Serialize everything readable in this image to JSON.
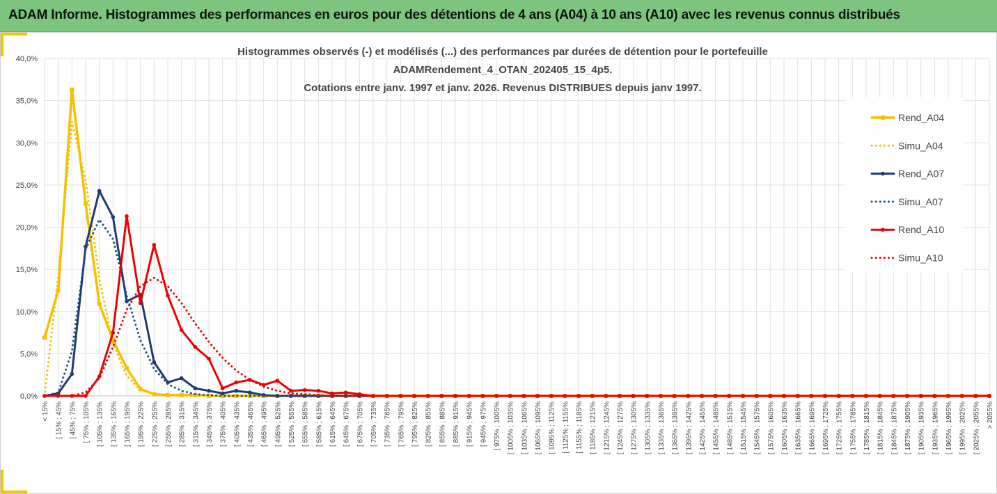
{
  "banner": {
    "title": "ADAM Informe. Histogrammes des performances en euros pour des détentions de 4 ans (A04) à 10 ans (A10) avec les revenus connus distribués"
  },
  "colors": {
    "banner_bg": "#7dc57e",
    "accent": "#f5c400",
    "A04": "#f5c000",
    "A07": "#1f3a6e",
    "A10": "#ee0000"
  },
  "chart_data": {
    "type": "line",
    "title": [
      "Histogrammes observés (-) et modélisés (...) des performances par durées de détention pour le portefeuille",
      "ADAMRendement_4_OTAN_202405_15_4p5.",
      "Cotations entre janv. 1997 et janv. 2026. Revenus DISTRIBUES depuis janv 1997."
    ],
    "ylim": [
      0,
      40
    ],
    "yticks": [
      "0,0%",
      "5,0%",
      "10,0%",
      "15,0%",
      "20,0%",
      "25,0%",
      "30,0%",
      "35,0%",
      "40,0%"
    ],
    "grid": "vertical and horizontal",
    "legend_position": "right",
    "categories": [
      "< 15%",
      "[ 15% ; 45%",
      "[ 45% ; 75%",
      "[ 75% ; 105%",
      "[ 105% ; 135%",
      "[ 135% ; 165%",
      "[ 165% ; 195%",
      "[ 195% ; 225%",
      "[ 225% ; 255%",
      "[ 255% ; 285%",
      "[ 285% ; 315%",
      "[ 315% ; 345%",
      "[ 345% ; 375%",
      "[ 375% ; 405%",
      "[ 405% ; 435%",
      "[ 435% ; 465%",
      "[ 465% ; 495%",
      "[ 495% ; 525%",
      "[ 525% ; 555%",
      "[ 555% ; 585%",
      "[ 585% ; 615%",
      "[ 615% ; 645%",
      "[ 645% ; 675%",
      "[ 675% ; 705%",
      "[ 705% ; 735%",
      "[ 735% ; 765%",
      "[ 765% ; 795%",
      "[ 795% ; 825%",
      "[ 825% ; 855%",
      "[ 855% ; 885%",
      "[ 885% ; 915%",
      "[ 915% ; 945%",
      "[ 945% ; 975%",
      "[ 975% ; 1005%",
      "[ 1005% ; 1035%",
      "[ 1035% ; 1065%",
      "[ 1065% ; 1095%",
      "[ 1095% ; 1125%",
      "[ 1125% ; 1155%",
      "[ 1155% ; 1185%",
      "[ 1185% ; 1215%",
      "[ 1215% ; 1245%",
      "[ 1245% ; 1275%",
      "[ 1275% ; 1305%",
      "[ 1305% ; 1335%",
      "[ 1335% ; 1365%",
      "[ 1365% ; 1395%",
      "[ 1395% ; 1425%",
      "[ 1425% ; 1455%",
      "[ 1455% ; 1485%",
      "[ 1485% ; 1515%",
      "[ 1515% ; 1545%",
      "[ 1545% ; 1575%",
      "[ 1575% ; 1605%",
      "[ 1605% ; 1635%",
      "[ 1635% ; 1665%",
      "[ 1665% ; 1695%",
      "[ 1695% ; 1725%",
      "[ 1725% ; 1755%",
      "[ 1755% ; 1785%",
      "[ 1785% ; 1815%",
      "[ 1815% ; 1845%",
      "[ 1845% ; 1875%",
      "[ 1875% ; 1905%",
      "[ 1905% ; 1935%",
      "[ 1935% ; 1965%",
      "[ 1965% ; 1995%",
      "[ 1995% ; 2025%",
      "[ 2025% ; 2055%",
      "> 2055%"
    ],
    "series": [
      {
        "name": "Rend_A04",
        "style": "solid",
        "marker": "square",
        "color": "#f5c000",
        "values": [
          6.9,
          12.5,
          36.3,
          22.8,
          10.9,
          6.6,
          3.3,
          0.8,
          0.2,
          0.1,
          0.1,
          0.1,
          0.0,
          0.0,
          0.0,
          0.0,
          0.0,
          0.0,
          0.0,
          0.0,
          0.0,
          0.0,
          0.0,
          0.0,
          0.0,
          0.0,
          0.0,
          0.0,
          0.0,
          0.0,
          0.0,
          0.0,
          0.0,
          0.0,
          0.0,
          0.0,
          0.0,
          0.0,
          0.0,
          0.0,
          0.0,
          0.0,
          0.0,
          0.0,
          0.0,
          0.0,
          0.0,
          0.0,
          0.0,
          0.0,
          0.0,
          0.0,
          0.0,
          0.0,
          0.0,
          0.0,
          0.0,
          0.0,
          0.0,
          0.0,
          0.0,
          0.0,
          0.0,
          0.0,
          0.0,
          0.0,
          0.0,
          0.0,
          0.0,
          0.0
        ]
      },
      {
        "name": "Simu_A04",
        "style": "dotted",
        "marker": "none",
        "color": "#f5c000",
        "values": [
          0.0,
          14.3,
          32.5,
          25.6,
          13.9,
          6.2,
          2.4,
          0.7,
          0.2,
          0.1,
          0.0,
          0.0,
          0.0,
          0.0,
          0.0,
          0.0,
          0.0,
          0.0,
          0.0,
          0.0,
          0.0,
          0.0,
          0.0,
          0.0,
          0.0,
          0.0,
          0.0,
          0.0,
          0.0,
          0.0,
          0.0,
          0.0,
          0.0,
          0.0,
          0.0,
          0.0,
          0.0,
          0.0,
          0.0,
          0.0,
          0.0,
          0.0,
          0.0,
          0.0,
          0.0,
          0.0,
          0.0,
          0.0,
          0.0,
          0.0,
          0.0,
          0.0,
          0.0,
          0.0,
          0.0,
          0.0,
          0.0,
          0.0,
          0.0,
          0.0,
          0.0,
          0.0,
          0.0,
          0.0,
          0.0,
          0.0,
          0.0,
          0.0,
          0.0,
          0.0
        ]
      },
      {
        "name": "Rend_A07",
        "style": "solid",
        "marker": "circle",
        "color": "#1f3a6e",
        "values": [
          0.0,
          0.3,
          2.6,
          17.7,
          24.3,
          21.2,
          11.2,
          12.0,
          4.0,
          1.6,
          2.1,
          0.9,
          0.6,
          0.3,
          0.6,
          0.4,
          0.1,
          0.0,
          0.0,
          0.0,
          0.0,
          0.0,
          0.0,
          0.0,
          0.0,
          0.0,
          0.0,
          0.0,
          0.0,
          0.0,
          0.0,
          0.0,
          0.0,
          0.0,
          0.0,
          0.0,
          0.0,
          0.0,
          0.0,
          0.0,
          0.0,
          0.0,
          0.0,
          0.0,
          0.0,
          0.0,
          0.0,
          0.0,
          0.0,
          0.0,
          0.0,
          0.0,
          0.0,
          0.0,
          0.0,
          0.0,
          0.0,
          0.0,
          0.0,
          0.0,
          0.0,
          0.0,
          0.0,
          0.0,
          0.0,
          0.0,
          0.0,
          0.0,
          0.0,
          0.0
        ]
      },
      {
        "name": "Simu_A07",
        "style": "dotted",
        "marker": "none",
        "color": "#1f4f86",
        "values": [
          0.0,
          0.4,
          5.3,
          17.4,
          20.9,
          18.6,
          11.9,
          6.6,
          3.2,
          1.4,
          0.6,
          0.2,
          0.1,
          0.0,
          0.0,
          0.0,
          0.0,
          0.0,
          0.0,
          0.0,
          0.0,
          0.0,
          0.0,
          0.0,
          0.0,
          0.0,
          0.0,
          0.0,
          0.0,
          0.0,
          0.0,
          0.0,
          0.0,
          0.0,
          0.0,
          0.0,
          0.0,
          0.0,
          0.0,
          0.0,
          0.0,
          0.0,
          0.0,
          0.0,
          0.0,
          0.0,
          0.0,
          0.0,
          0.0,
          0.0,
          0.0,
          0.0,
          0.0,
          0.0,
          0.0,
          0.0,
          0.0,
          0.0,
          0.0,
          0.0,
          0.0,
          0.0,
          0.0,
          0.0,
          0.0,
          0.0,
          0.0,
          0.0,
          0.0,
          0.0
        ]
      },
      {
        "name": "Rend_A10",
        "style": "solid",
        "marker": "circle",
        "color": "#ee0000",
        "values": [
          0.0,
          0.0,
          0.0,
          0.0,
          2.3,
          7.5,
          21.3,
          11.0,
          17.9,
          11.9,
          7.8,
          5.8,
          4.4,
          0.9,
          1.6,
          1.9,
          1.3,
          1.8,
          0.6,
          0.7,
          0.6,
          0.3,
          0.4,
          0.2,
          0.0,
          0.0,
          0.0,
          0.0,
          0.0,
          0.0,
          0.0,
          0.0,
          0.0,
          0.0,
          0.0,
          0.0,
          0.0,
          0.0,
          0.0,
          0.0,
          0.0,
          0.0,
          0.0,
          0.0,
          0.0,
          0.0,
          0.0,
          0.0,
          0.0,
          0.0,
          0.0,
          0.0,
          0.0,
          0.0,
          0.0,
          0.0,
          0.0,
          0.0,
          0.0,
          0.0,
          0.0,
          0.0,
          0.0,
          0.0,
          0.0,
          0.0,
          0.0,
          0.0,
          0.0,
          0.0
        ]
      },
      {
        "name": "Simu_A10",
        "style": "dotted",
        "marker": "none",
        "color": "#ee0000",
        "values": [
          0.0,
          0.0,
          0.0,
          0.4,
          2.1,
          5.8,
          10.2,
          13.0,
          14.0,
          13.0,
          11.0,
          8.6,
          6.4,
          4.5,
          3.0,
          1.9,
          1.1,
          0.6,
          0.3,
          0.2,
          0.1,
          0.0,
          0.0,
          0.0,
          0.0,
          0.0,
          0.0,
          0.0,
          0.0,
          0.0,
          0.0,
          0.0,
          0.0,
          0.0,
          0.0,
          0.0,
          0.0,
          0.0,
          0.0,
          0.0,
          0.0,
          0.0,
          0.0,
          0.0,
          0.0,
          0.0,
          0.0,
          0.0,
          0.0,
          0.0,
          0.0,
          0.0,
          0.0,
          0.0,
          0.0,
          0.0,
          0.0,
          0.0,
          0.0,
          0.0,
          0.0,
          0.0,
          0.0,
          0.0,
          0.0,
          0.0,
          0.0,
          0.0,
          0.0,
          0.0
        ]
      }
    ]
  }
}
